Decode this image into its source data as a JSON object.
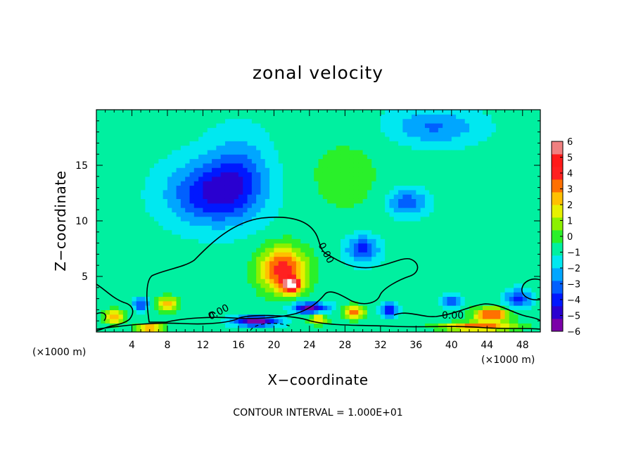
{
  "chart_data": {
    "type": "heatmap",
    "title": "zonal velocity",
    "xlabel": "X−coordinate",
    "ylabel": "Z−coordinate",
    "x_unit_left": "(×1000 m)",
    "x_unit_right": "(×1000 m)",
    "xlim": [
      0,
      50
    ],
    "ylim": [
      0,
      20
    ],
    "x_ticks": [
      4,
      8,
      12,
      16,
      20,
      24,
      28,
      32,
      36,
      40,
      44,
      48
    ],
    "y_ticks": [
      5,
      10,
      15
    ],
    "colorbar": {
      "ticks": [
        "6",
        "5",
        "4",
        "3",
        "2",
        "1",
        "0",
        "−1",
        "−2",
        "−3",
        "−4",
        "−5",
        "−6"
      ],
      "range": [
        -6,
        6
      ],
      "colors": [
        "#7b00a8",
        "#2a00d0",
        "#0018ff",
        "#0060ff",
        "#00a6ff",
        "#00e8f0",
        "#00f0a0",
        "#2af02a",
        "#8cf000",
        "#e6f000",
        "#ffc000",
        "#ff7000",
        "#ff2020",
        "#ff1a1a",
        "#f08080"
      ]
    },
    "contour_labels": [
      "0.00",
      "0.00",
      "0.00"
    ],
    "footer": "CONTOUR INTERVAL = 1.000E+01",
    "blobs": [
      {
        "x": 13,
        "z": 12.5,
        "value": -3.4,
        "sx": 5,
        "sz": 2.8
      },
      {
        "x": 30,
        "z": 7.5,
        "value": -3.0,
        "sx": 1.8,
        "sz": 1.2
      },
      {
        "x": 35,
        "z": 11.7,
        "value": -2.6,
        "sx": 2.2,
        "sz": 1.2
      },
      {
        "x": 38,
        "z": 18.5,
        "value": -2.0,
        "sx": 5,
        "sz": 1.6
      },
      {
        "x": 21,
        "z": 5.6,
        "value": 5.2,
        "sx": 2.6,
        "sz": 2.0
      },
      {
        "x": 22,
        "z": 4.2,
        "value": 6.0,
        "sx": 1.0,
        "sz": 0.6
      },
      {
        "x": 16,
        "z": 14.5,
        "value": -1.8,
        "sx": 3.5,
        "sz": 3.5
      },
      {
        "x": 8,
        "z": 2.5,
        "value": 3.5,
        "sx": 1.2,
        "sz": 0.7
      },
      {
        "x": 2,
        "z": 1.4,
        "value": 3.5,
        "sx": 1.2,
        "sz": 0.6
      },
      {
        "x": 5,
        "z": 2.5,
        "value": -3.0,
        "sx": 0.8,
        "sz": 0.6
      },
      {
        "x": 25,
        "z": 1.2,
        "value": 3.0,
        "sx": 1.0,
        "sz": 0.5
      },
      {
        "x": 29,
        "z": 1.8,
        "value": 4.0,
        "sx": 1.2,
        "sz": 0.6
      },
      {
        "x": 33,
        "z": 2.0,
        "value": -3.5,
        "sx": 1.0,
        "sz": 0.6
      },
      {
        "x": 44.5,
        "z": 1.6,
        "value": 5.0,
        "sx": 2.0,
        "sz": 0.6
      },
      {
        "x": 47.5,
        "z": 3.0,
        "value": -3.2,
        "sx": 1.4,
        "sz": 0.8
      },
      {
        "x": 40,
        "z": 2.8,
        "value": -2.5,
        "sx": 1.0,
        "sz": 0.6
      },
      {
        "x": 24,
        "z": 2.2,
        "value": -4.5,
        "sx": 2.0,
        "sz": 0.5
      },
      {
        "x": 18,
        "z": 1.0,
        "value": -5.0,
        "sx": 2.5,
        "sz": 0.45
      },
      {
        "x": 43,
        "z": 0.5,
        "value": 4.5,
        "sx": 4,
        "sz": 0.4
      },
      {
        "x": 6,
        "z": 0.4,
        "value": 4.0,
        "sx": 1.5,
        "sz": 0.4
      },
      {
        "x": 28,
        "z": 14,
        "value": 0.8,
        "sx": 5,
        "sz": 4
      }
    ]
  }
}
